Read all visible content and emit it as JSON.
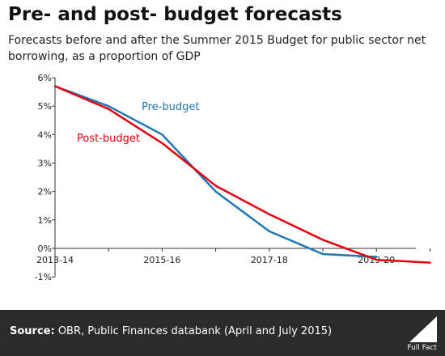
{
  "header": {
    "title": "Pre- and post- budget forecasts",
    "subtitle": "Forecasts before and after the Summer 2015 Budget for public sector net borrowing, as a proportion of GDP"
  },
  "footer": {
    "source_label": "Source:",
    "source_text": " OBR, Public Finances databank (April and July 2015)",
    "brand": "Full Fact"
  },
  "colors": {
    "pre_budget": "#1f77b4",
    "post_budget": "#e3000f",
    "footer_bg": "#2b2b2b"
  },
  "chart_data": {
    "type": "line",
    "title": "",
    "xlabel": "",
    "ylabel": "",
    "x_tick_labels": [
      "2013-14",
      "2015-16",
      "2017-18",
      "2019-20"
    ],
    "y_tick_labels": [
      "6%",
      "5%",
      "4%",
      "3%",
      "2%",
      "1%",
      "0%",
      "-1%"
    ],
    "y_ticks": [
      6,
      5,
      4,
      3,
      2,
      1,
      0,
      -1
    ],
    "ylim": [
      -1,
      6
    ],
    "x": [
      "2013-14",
      "2014-15",
      "2015-16",
      "2016-17",
      "2017-18",
      "2018-19",
      "2019-20",
      "2020-21"
    ],
    "grid": false,
    "legend": "inline labels",
    "series": [
      {
        "name": "Pre-budget",
        "color": "#1f77b4",
        "values": [
          5.7,
          5.0,
          4.0,
          2.0,
          0.6,
          -0.2,
          -0.3,
          null
        ]
      },
      {
        "name": "Post-budget",
        "color": "#e3000f",
        "values": [
          5.7,
          4.9,
          3.7,
          2.2,
          1.2,
          0.3,
          -0.4,
          -0.5
        ]
      }
    ]
  }
}
